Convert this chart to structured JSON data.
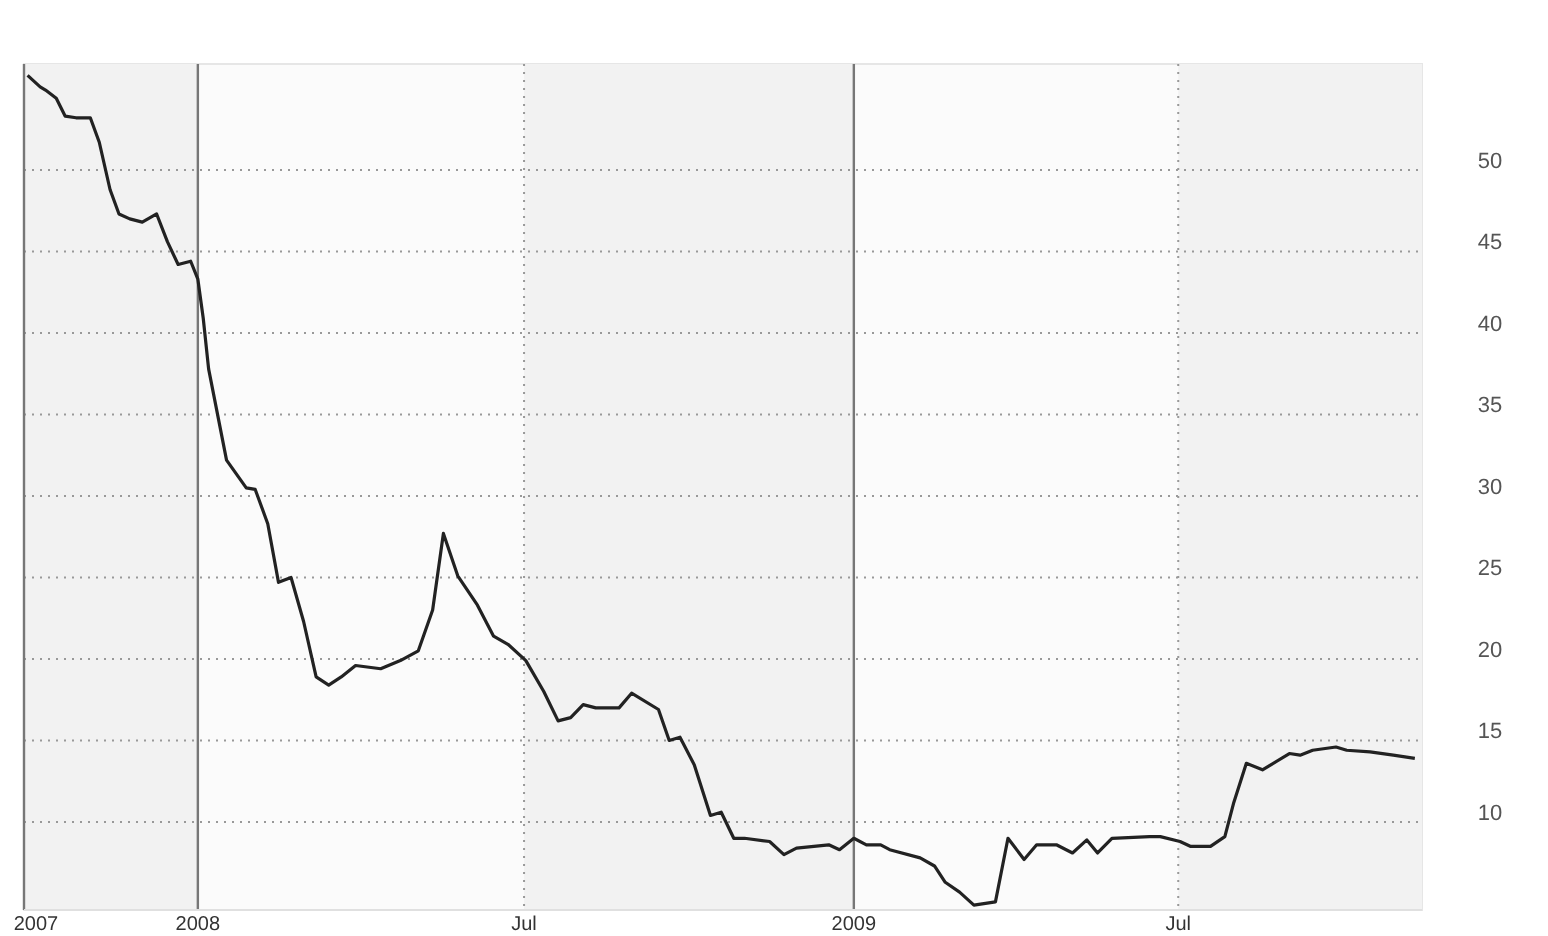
{
  "chart_data": {
    "type": "line",
    "x": [
      "2007-09-28",
      "2007-10-05",
      "2007-10-08",
      "2007-10-14",
      "2007-10-19",
      "2007-10-25",
      "2007-11-02",
      "2007-11-07",
      "2007-11-13",
      "2007-11-18",
      "2007-11-24",
      "2007-12-01",
      "2007-12-09",
      "2007-12-15",
      "2007-12-21",
      "2007-12-28",
      "2008-01-01",
      "2008-01-04",
      "2008-01-07",
      "2008-01-17",
      "2008-01-28",
      "2008-02-02",
      "2008-02-09",
      "2008-02-15",
      "2008-02-22",
      "2008-02-29",
      "2008-03-07",
      "2008-03-14",
      "2008-03-21",
      "2008-03-29",
      "2008-04-12",
      "2008-04-23",
      "2008-05-03",
      "2008-05-11",
      "2008-05-17",
      "2008-05-25",
      "2008-06-05",
      "2008-06-14",
      "2008-06-22",
      "2008-07-02",
      "2008-07-12",
      "2008-07-20",
      "2008-07-27",
      "2008-08-03",
      "2008-08-10",
      "2008-08-23",
      "2008-08-30",
      "2008-09-14",
      "2008-09-20",
      "2008-09-26",
      "2008-10-04",
      "2008-10-13",
      "2008-10-19",
      "2008-10-26",
      "2008-11-01",
      "2008-11-15",
      "2008-11-23",
      "2008-11-30",
      "2008-12-18",
      "2008-12-24",
      "2009-01-01",
      "2009-01-08",
      "2009-01-16",
      "2009-01-21",
      "2009-02-07",
      "2009-02-15",
      "2009-02-21",
      "2009-03-01",
      "2009-03-09",
      "2009-03-21",
      "2009-03-28",
      "2009-04-06",
      "2009-04-13",
      "2009-04-24",
      "2009-05-03",
      "2009-05-11",
      "2009-05-17",
      "2009-05-25",
      "2009-06-15",
      "2009-06-21",
      "2009-07-02",
      "2009-07-08",
      "2009-07-19",
      "2009-07-27",
      "2009-08-01",
      "2009-08-08",
      "2009-08-17",
      "2009-09-01",
      "2009-09-07",
      "2009-09-14",
      "2009-09-27",
      "2009-10-03",
      "2009-10-16",
      "2009-10-29",
      "2009-11-10"
    ],
    "series": [
      {
        "color": "#222222",
        "values": [
          55.8,
          55.1,
          54.9,
          54.4,
          53.3,
          53.2,
          53.2,
          51.7,
          48.8,
          47.3,
          47.0,
          46.8,
          47.3,
          45.6,
          44.2,
          44.4,
          43.3,
          40.9,
          37.8,
          32.2,
          30.5,
          30.4,
          28.3,
          24.7,
          25.0,
          22.3,
          18.9,
          18.4,
          18.9,
          19.6,
          19.4,
          19.9,
          20.5,
          23.0,
          27.7,
          25.1,
          23.3,
          21.4,
          20.9,
          19.9,
          18.0,
          16.2,
          16.4,
          17.2,
          17.0,
          17.0,
          17.9,
          16.9,
          15.0,
          15.2,
          13.5,
          10.4,
          10.6,
          9.0,
          9.0,
          8.8,
          8.0,
          8.4,
          8.6,
          8.3,
          9.0,
          8.6,
          8.6,
          8.3,
          7.8,
          7.3,
          6.3,
          5.7,
          4.9,
          5.1,
          9.0,
          7.7,
          8.6,
          8.6,
          8.1,
          8.9,
          8.1,
          9.0,
          9.1,
          9.1,
          8.8,
          8.5,
          8.5,
          9.1,
          11.2,
          13.6,
          13.2,
          14.2,
          14.1,
          14.4,
          14.6,
          14.4,
          14.3,
          14.1,
          13.9
        ]
      }
    ],
    "xlim": [
      "2007-09-26",
      "2009-11-14"
    ],
    "xticks": [
      {
        "value": "2007-09-26",
        "label": "2007"
      },
      {
        "value": "2008-01-01",
        "label": "2008"
      },
      {
        "value": "2008-07-01",
        "label": "Jul"
      },
      {
        "value": "2009-01-01",
        "label": "2009"
      },
      {
        "value": "2009-07-01",
        "label": "Jul"
      }
    ],
    "ylim": [
      4.6,
      56.5
    ],
    "yticks": [
      10,
      15,
      20,
      25,
      30,
      35,
      40,
      45,
      50
    ],
    "grid": true,
    "bands": [
      {
        "axis": "x",
        "from": "2007-09-26",
        "to": "2008-01-01",
        "color": "#f2f2f2"
      },
      {
        "axis": "x",
        "from": "2008-07-01",
        "to": "2009-01-01",
        "color": "#f2f2f2"
      },
      {
        "axis": "x",
        "from": "2009-07-01",
        "to": "2009-11-14",
        "color": "#f2f2f2"
      }
    ],
    "line_style": "solid",
    "marker": "none"
  }
}
